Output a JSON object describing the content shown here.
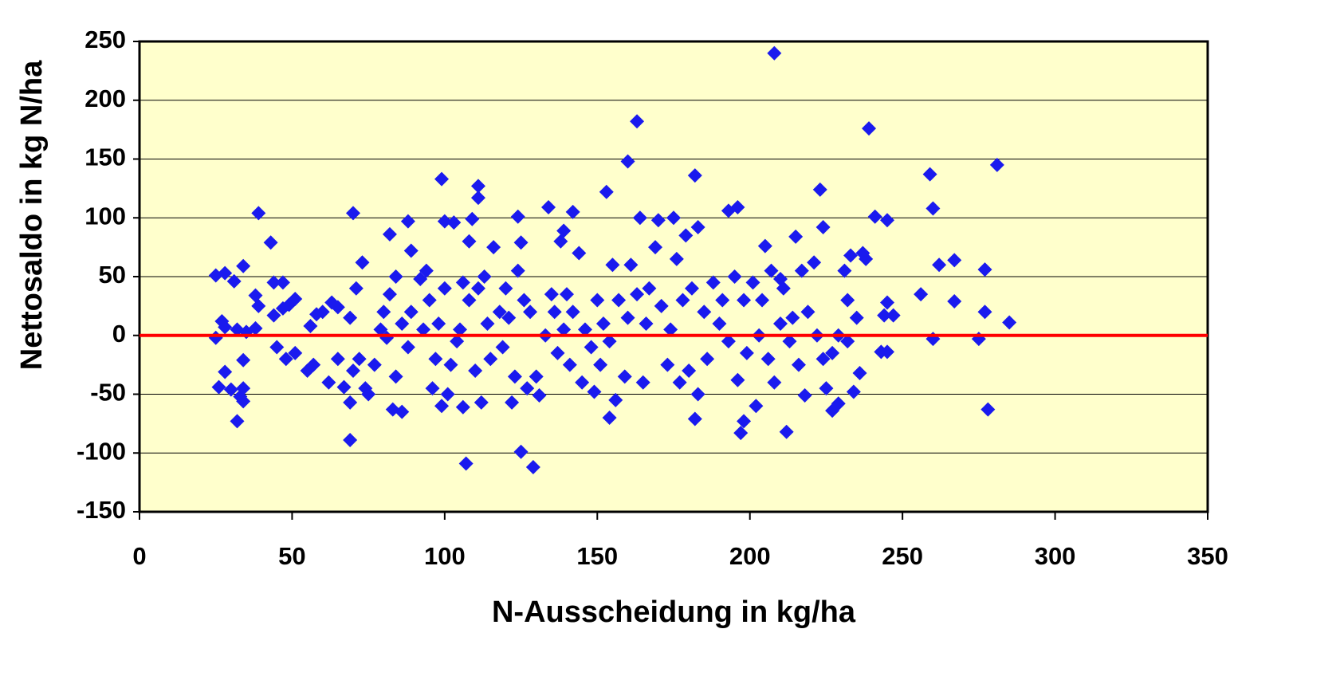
{
  "chart_data": {
    "type": "scatter",
    "x_label": "N-Ausscheidung in kg/ha",
    "y_label": "Nettosaldo  in kg N/ha",
    "xlim": [
      0,
      350
    ],
    "xticks": [
      0,
      50,
      100,
      150,
      200,
      250,
      300,
      350
    ],
    "ylim": [
      -150,
      250
    ],
    "yticks": [
      -150,
      -100,
      -50,
      0,
      50,
      100,
      150,
      200,
      250
    ],
    "grid": true,
    "background": "#FFFFCC",
    "color": "#1a1aee",
    "hline": {
      "value": 0,
      "color": "#ff0000"
    },
    "x": [
      208,
      163,
      239,
      160,
      281,
      182,
      259,
      99,
      111,
      111,
      153,
      223,
      260,
      39,
      70,
      196,
      193,
      134,
      142,
      164,
      175,
      170,
      124,
      88,
      103,
      100,
      109,
      241,
      245,
      183,
      224,
      82,
      139,
      215,
      107,
      129,
      125,
      69,
      197,
      212,
      198,
      32,
      182,
      154,
      278,
      227,
      229,
      202,
      106,
      83,
      86,
      99,
      112,
      122,
      69,
      34,
      218,
      277,
      267,
      262,
      256,
      267,
      285,
      277,
      275,
      260,
      245,
      243,
      245,
      244,
      247,
      25,
      28,
      31,
      34,
      27,
      28,
      25,
      30,
      26,
      28,
      34,
      33,
      34,
      35,
      32,
      38,
      38,
      39,
      43,
      44,
      47,
      44,
      47,
      49,
      51,
      45,
      48,
      51,
      55,
      57,
      56,
      58,
      60,
      63,
      65,
      62,
      65,
      67,
      69,
      70,
      72,
      71,
      73,
      74,
      75,
      77,
      79,
      80,
      81,
      82,
      84,
      84,
      86,
      88,
      89,
      89,
      92,
      93,
      94,
      95,
      96,
      97,
      98,
      100,
      101,
      102,
      104,
      105,
      106,
      108,
      108,
      110,
      111,
      113,
      114,
      115,
      116,
      118,
      119,
      120,
      121,
      123,
      124,
      125,
      126,
      127,
      128,
      130,
      131,
      133,
      135,
      136,
      137,
      138,
      139,
      140,
      141,
      142,
      144,
      145,
      146,
      148,
      149,
      150,
      151,
      152,
      154,
      155,
      156,
      157,
      159,
      160,
      161,
      163,
      165,
      166,
      167,
      169,
      171,
      173,
      174,
      176,
      177,
      178,
      179,
      180,
      181,
      183,
      185,
      186,
      188,
      190,
      191,
      193,
      195,
      196,
      198,
      199,
      201,
      203,
      204,
      205,
      206,
      207,
      208,
      210,
      211,
      213,
      214,
      216,
      217,
      219,
      221,
      222,
      224,
      225,
      227,
      229,
      231,
      232,
      233,
      234,
      235,
      236,
      237,
      238,
      232,
      210
    ],
    "values": [
      240,
      182,
      176,
      148,
      145,
      136,
      137,
      133,
      127,
      117,
      122,
      124,
      108,
      104,
      104,
      109,
      106,
      109,
      105,
      100,
      100,
      98,
      101,
      97,
      96,
      97,
      99,
      101,
      98,
      92,
      92,
      86,
      89,
      84,
      -109,
      -112,
      -99,
      -89,
      -83,
      -82,
      -73,
      -73,
      -71,
      -70,
      -63,
      -64,
      -58,
      -60,
      -61,
      -63,
      -65,
      -60,
      -57,
      -57,
      -57,
      -56,
      -51,
      56,
      64,
      60,
      35,
      29,
      11,
      20,
      -3,
      -3,
      -14,
      -14,
      28,
      17,
      17,
      51,
      53,
      46,
      59,
      12,
      7,
      -2,
      -46,
      -44,
      -31,
      -45,
      -52,
      -21,
      3,
      5,
      6,
      34,
      25,
      79,
      45,
      45,
      17,
      23,
      26,
      31,
      -10,
      -20,
      -15,
      -30,
      -25,
      8,
      18,
      20,
      28,
      24,
      -40,
      -20,
      -44,
      15,
      -30,
      -20,
      40,
      62,
      -45,
      -50,
      -25,
      5,
      20,
      -2,
      35,
      50,
      -35,
      10,
      -10,
      20,
      72,
      48,
      5,
      55,
      30,
      -45,
      -20,
      10,
      40,
      -50,
      -25,
      -5,
      5,
      45,
      80,
      30,
      -30,
      40,
      50,
      10,
      -20,
      75,
      20,
      -10,
      40,
      15,
      -35,
      55,
      79,
      30,
      -45,
      20,
      -35,
      -51,
      0,
      35,
      20,
      -15,
      80,
      5,
      35,
      -25,
      20,
      70,
      -40,
      5,
      -10,
      -48,
      30,
      -25,
      10,
      -5,
      60,
      -55,
      30,
      -35,
      15,
      60,
      35,
      -40,
      10,
      40,
      75,
      25,
      -25,
      5,
      65,
      -40,
      30,
      85,
      -30,
      40,
      -50,
      20,
      -20,
      45,
      10,
      30,
      -5,
      50,
      -38,
      30,
      -15,
      45,
      0,
      30,
      76,
      -20,
      55,
      -40,
      10,
      40,
      -5,
      15,
      -25,
      55,
      20,
      62,
      0,
      -20,
      -45,
      -15,
      0,
      55,
      30,
      68,
      -48,
      15,
      -32,
      70,
      65,
      -5,
      48
    ]
  }
}
